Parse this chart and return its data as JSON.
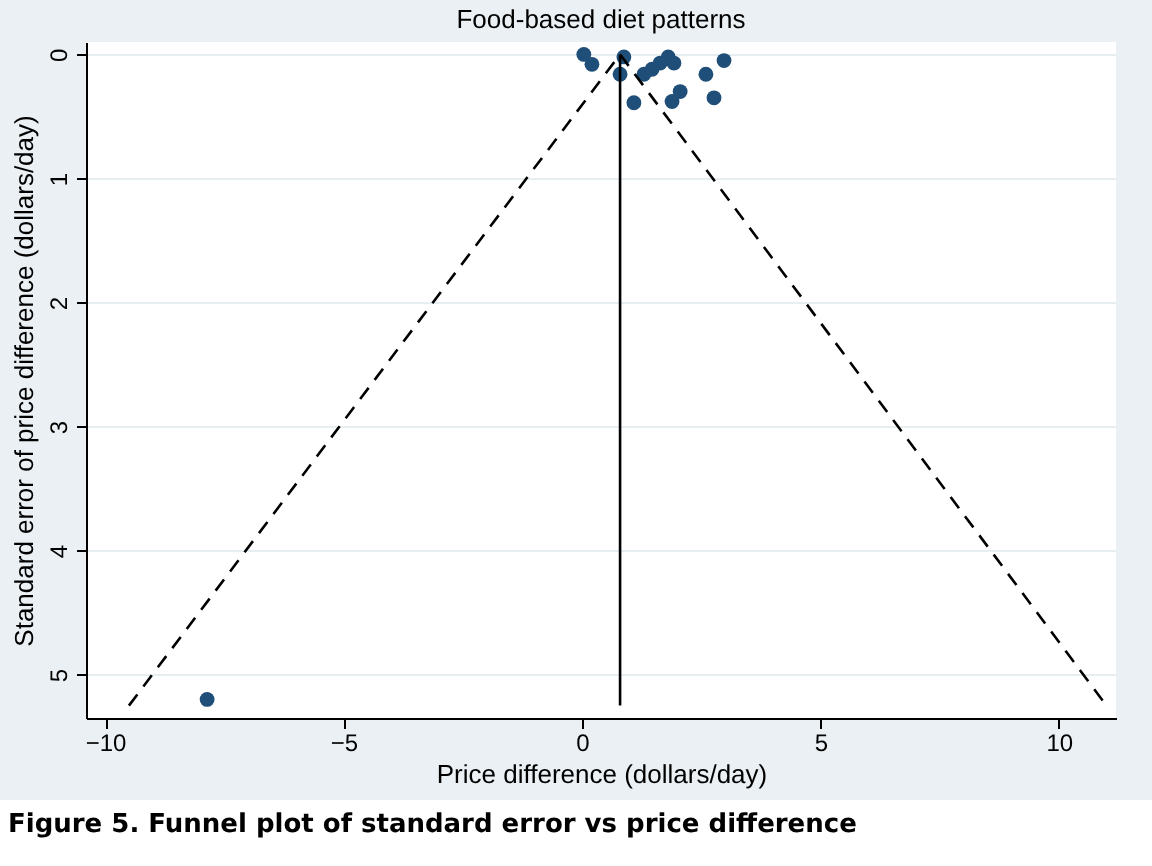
{
  "chart_data": {
    "type": "scatter",
    "title": "Food-based diet patterns",
    "xlabel": "Price difference (dollars/day)",
    "ylabel": "Standard error of price difference (dollars/day)",
    "annotations": [
      "Figure 5. Funnel plot of standard error vs price difference"
    ],
    "xlim": [
      -10.4,
      11.2
    ],
    "xticks": [
      -10,
      -5,
      0,
      5,
      10
    ],
    "ylim": [
      5.35,
      -0.1
    ],
    "yticks": [
      0,
      1,
      2,
      3,
      4,
      5
    ],
    "grid": "y",
    "series": [
      {
        "marker": "circle",
        "color": "#1f4e79",
        "x": [
          0.04,
          0.21,
          0.88,
          0.8,
          1.09,
          1.3,
          1.47,
          1.64,
          1.81,
          1.93,
          2.06,
          1.89,
          2.6,
          2.77,
          2.98,
          -7.86
        ],
        "values": [
          0.0,
          0.08,
          0.02,
          0.16,
          0.39,
          0.16,
          0.12,
          0.07,
          0.02,
          0.07,
          0.3,
          0.38,
          0.16,
          0.35,
          0.05,
          5.2
        ]
      },
      {
        "type": "line",
        "color": "#000000",
        "line_style": "solid",
        "x": [
          0.8,
          0.8
        ],
        "values": [
          0,
          5.25
        ]
      },
      {
        "type": "line",
        "color": "#000000",
        "line_style": "dashed",
        "x": [
          -9.5,
          0.8,
          11
        ],
        "values": [
          5.25,
          0,
          5.25
        ]
      }
    ]
  }
}
